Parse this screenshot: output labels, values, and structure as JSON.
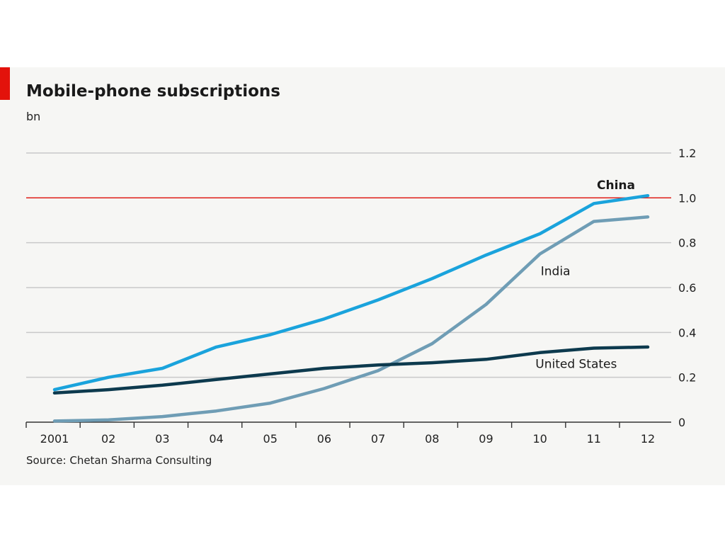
{
  "chart_data": {
    "type": "line",
    "title": "Mobile-phone subscriptions",
    "unit_label": "bn",
    "source": "Source: Chetan Sharma Consulting",
    "x": [
      2001,
      2002,
      2003,
      2004,
      2005,
      2006,
      2007,
      2008,
      2009,
      2010,
      2011,
      2012
    ],
    "x_tick_labels": [
      "2001",
      "02",
      "03",
      "04",
      "05",
      "06",
      "07",
      "08",
      "09",
      "10",
      "11",
      "12"
    ],
    "ylim": [
      0,
      1.2
    ],
    "y_ticks": [
      0,
      0.2,
      0.4,
      0.6,
      0.8,
      1.0,
      1.2
    ],
    "y_tick_labels": [
      "0",
      "0.2",
      "0.4",
      "0.6",
      "0.8",
      "1.0",
      "1.2"
    ],
    "y_axis_side": "right",
    "grid": true,
    "reference_line": {
      "y": 1.0,
      "color": "#e3120b"
    },
    "series": [
      {
        "name": "China",
        "color": "#1aa3dc",
        "label_bold": true,
        "values": [
          0.145,
          0.2,
          0.24,
          0.335,
          0.39,
          0.46,
          0.545,
          0.64,
          0.745,
          0.84,
          0.975,
          1.01
        ]
      },
      {
        "name": "India",
        "color": "#6f9db5",
        "label_bold": false,
        "values": [
          0.005,
          0.01,
          0.025,
          0.05,
          0.085,
          0.15,
          0.23,
          0.35,
          0.525,
          0.75,
          0.895,
          0.915
        ]
      },
      {
        "name": "United States",
        "color": "#0d3a4e",
        "label_bold": false,
        "values": [
          0.13,
          0.145,
          0.165,
          0.19,
          0.215,
          0.24,
          0.255,
          0.265,
          0.28,
          0.31,
          0.33,
          0.335
        ]
      }
    ]
  }
}
